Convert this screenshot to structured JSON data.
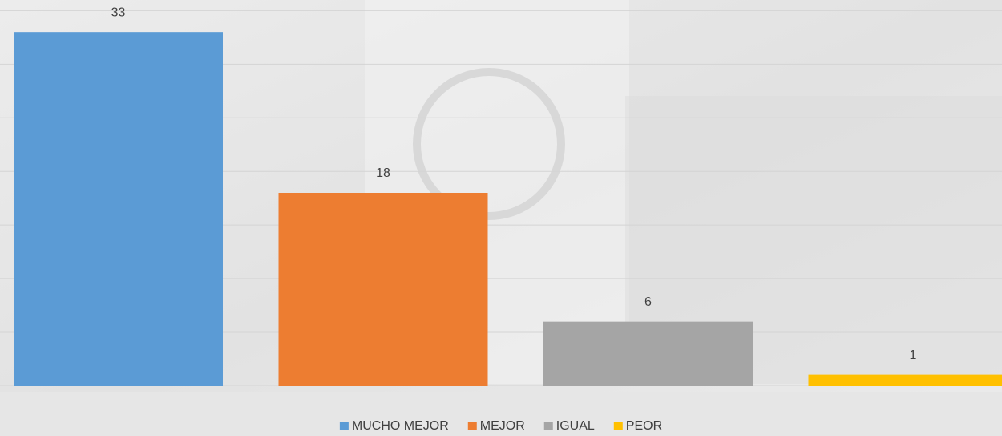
{
  "chart_data": {
    "type": "bar",
    "categories": [
      null
    ],
    "series": [
      {
        "name": "MUCHO MEJOR",
        "color": "#5b9bd5",
        "values": [
          33
        ]
      },
      {
        "name": "MEJOR",
        "color": "#ed7d31",
        "values": [
          18
        ]
      },
      {
        "name": "IGUAL",
        "color": "#a5a5a5",
        "values": [
          6
        ]
      },
      {
        "name": "PEOR",
        "color": "#ffc000",
        "values": [
          1
        ]
      }
    ],
    "ylim": [
      0,
      36
    ],
    "yticks": [
      0,
      5,
      10,
      15,
      20,
      25,
      30,
      35
    ],
    "grid": true,
    "legend": "bottom"
  }
}
